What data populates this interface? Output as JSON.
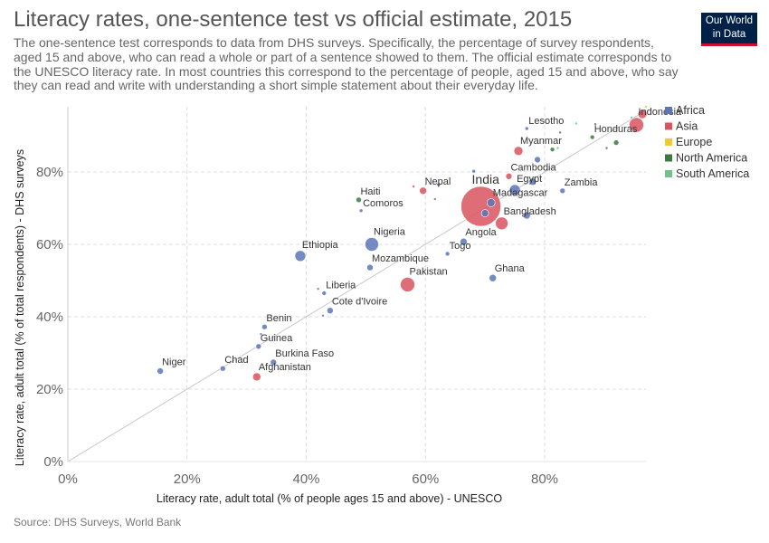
{
  "title": "Literacy rates, one-sentence test vs official estimate, 2015",
  "subtitle": "The one-sentence test corresponds to data from DHS surveys. Specifically, the percentage of survey respondents, aged 15 and above, who can read a whole or part of a sentence showed to them. The official estimate corresponds to the UNESCO literacy rate. In most countries this correspond to the percentage of people, aged 15 and above, who say they can read and write with understanding a short simple statement about their everyday life.",
  "logo": {
    "line1": "Our World",
    "line2": "in Data"
  },
  "source": "Source: DHS Surveys, World Bank",
  "colors": {
    "Africa": "#5b76b9",
    "Asia": "#d8545f",
    "Europe": "#f2c934",
    "North America": "#3d7a3f",
    "South America": "#6fc28b"
  },
  "chart_data": {
    "type": "scatter",
    "xlabel": "Literacy rate, adult total (% of people ages 15 and above) - UNESCO",
    "ylabel": "Literacy rate, adult total (% of total respondents) - DHS surveys",
    "xlim": [
      0,
      97
    ],
    "ylim": [
      0,
      98
    ],
    "xticks": [
      0,
      20,
      40,
      60,
      80
    ],
    "yticks": [
      0,
      20,
      40,
      60,
      80
    ],
    "x_tick_labels": [
      "0%",
      "20%",
      "40%",
      "60%",
      "80%"
    ],
    "y_tick_labels": [
      "0%",
      "20%",
      "40%",
      "60%",
      "80%"
    ],
    "grid": true,
    "legend_position": "right",
    "legend": [
      "Africa",
      "Asia",
      "Europe",
      "North America",
      "South America"
    ],
    "points": [
      {
        "label": "Niger",
        "x": 15.5,
        "y": 25.0,
        "region": "Africa",
        "r": 3.5
      },
      {
        "label": "Chad",
        "x": 26.0,
        "y": 25.7,
        "region": "Africa",
        "r": 3
      },
      {
        "label": "Afghanistan",
        "x": 31.7,
        "y": 23.4,
        "region": "Asia",
        "r": 4.5
      },
      {
        "label": "Burkina Faso",
        "x": 34.5,
        "y": 27.4,
        "region": "Africa",
        "r": 3.5
      },
      {
        "label": "Guinea",
        "x": 32.0,
        "y": 31.8,
        "region": "Africa",
        "r": 3
      },
      {
        "label": "",
        "x": 32.4,
        "y": 35.2,
        "region": "Africa",
        "r": 1.5
      },
      {
        "label": "Benin",
        "x": 33.0,
        "y": 37.2,
        "region": "Africa",
        "r": 3
      },
      {
        "label": "Liberia",
        "x": 43.0,
        "y": 46.5,
        "region": "Africa",
        "r": 2.5
      },
      {
        "label": "",
        "x": 42.0,
        "y": 47.7,
        "region": "Africa",
        "r": 1.5
      },
      {
        "label": "Cote d'Ivoire",
        "x": 44.0,
        "y": 41.7,
        "region": "Africa",
        "r": 3.5
      },
      {
        "label": "",
        "x": 42.8,
        "y": 40.3,
        "region": "Africa",
        "r": 1.5
      },
      {
        "label": "Ethiopia",
        "x": 39.0,
        "y": 56.8,
        "region": "Africa",
        "r": 6
      },
      {
        "label": "Nigeria",
        "x": 51.0,
        "y": 60.0,
        "region": "Africa",
        "r": 7.5
      },
      {
        "label": "Mozambique",
        "x": 50.7,
        "y": 53.6,
        "region": "Africa",
        "r": 3.5
      },
      {
        "label": "Pakistan",
        "x": 57.0,
        "y": 48.9,
        "region": "Asia",
        "r": 8
      },
      {
        "label": "Haiti",
        "x": 48.8,
        "y": 72.3,
        "region": "North America",
        "r": 3
      },
      {
        "label": "Comoros",
        "x": 49.2,
        "y": 69.3,
        "region": "Africa",
        "r": 2
      },
      {
        "label": "Nepal",
        "x": 59.6,
        "y": 74.8,
        "region": "Asia",
        "r": 4
      },
      {
        "label": "",
        "x": 58.0,
        "y": 76.0,
        "region": "Asia",
        "r": 1.5
      },
      {
        "label": "",
        "x": 62.2,
        "y": 76.5,
        "region": "Africa",
        "r": 2
      },
      {
        "label": "",
        "x": 61.6,
        "y": 72.5,
        "region": "Africa",
        "r": 1.5
      },
      {
        "label": "",
        "x": 68.1,
        "y": 80.2,
        "region": "Africa",
        "r": 2
      },
      {
        "label": "Angola",
        "x": 66.4,
        "y": 60.7,
        "region": "Africa",
        "r": 4
      },
      {
        "label": "Togo",
        "x": 63.7,
        "y": 57.4,
        "region": "Africa",
        "r": 2.5
      },
      {
        "label": "Ghana",
        "x": 71.3,
        "y": 50.7,
        "region": "Africa",
        "r": 4
      },
      {
        "label": "India",
        "x": 69.3,
        "y": 70.5,
        "region": "Asia",
        "r": 22
      },
      {
        "label": "Madagascar",
        "x": 71.0,
        "y": 71.5,
        "region": "Africa",
        "r": 4.5
      },
      {
        "label": "",
        "x": 70.0,
        "y": 68.6,
        "region": "Africa",
        "r": 4
      },
      {
        "label": "Bangladesh",
        "x": 72.8,
        "y": 65.8,
        "region": "Asia",
        "r": 7
      },
      {
        "label": "",
        "x": 77.0,
        "y": 68.0,
        "region": "Africa",
        "r": 4
      },
      {
        "label": "Egypt",
        "x": 75.0,
        "y": 75.0,
        "region": "Africa",
        "r": 6
      },
      {
        "label": "Cambodia",
        "x": 74.0,
        "y": 78.8,
        "region": "Asia",
        "r": 3.5
      },
      {
        "label": "",
        "x": 78.0,
        "y": 77.3,
        "region": "Africa",
        "r": 4
      },
      {
        "label": "Zambia",
        "x": 83.0,
        "y": 74.8,
        "region": "Africa",
        "r": 3
      },
      {
        "label": "Myanmar",
        "x": 75.6,
        "y": 85.8,
        "region": "Asia",
        "r": 5
      },
      {
        "label": "",
        "x": 78.8,
        "y": 83.4,
        "region": "Africa",
        "r": 3.5
      },
      {
        "label": "Lesotho",
        "x": 77.0,
        "y": 92.0,
        "region": "Africa",
        "r": 2
      },
      {
        "label": "",
        "x": 81.3,
        "y": 86.2,
        "region": "North America",
        "r": 2.5
      },
      {
        "label": "",
        "x": 82.2,
        "y": 86.6,
        "region": "South America",
        "r": 1.5
      },
      {
        "label": "",
        "x": 82.6,
        "y": 90.9,
        "region": "North America",
        "r": 1.5
      },
      {
        "label": "",
        "x": 85.3,
        "y": 93.4,
        "region": "South America",
        "r": 1.5
      },
      {
        "label": "Honduras",
        "x": 88.0,
        "y": 89.6,
        "region": "North America",
        "r": 2.5
      },
      {
        "label": "",
        "x": 92.0,
        "y": 88.1,
        "region": "North America",
        "r": 3
      },
      {
        "label": "",
        "x": 90.4,
        "y": 86.6,
        "region": "North America",
        "r": 1.5
      },
      {
        "label": "",
        "x": 88.5,
        "y": 93.2,
        "region": "Africa",
        "r": 1.5
      },
      {
        "label": "Indonesia",
        "x": 95.4,
        "y": 93.0,
        "region": "Asia",
        "r": 8
      },
      {
        "label": "",
        "x": 96.4,
        "y": 96.0,
        "region": "Asia",
        "r": 5
      },
      {
        "label": "",
        "x": 97.0,
        "y": 98.0,
        "region": "Europe",
        "r": 1.5
      },
      {
        "label": "",
        "x": 94.6,
        "y": 95.0,
        "region": "South America",
        "r": 1.5
      }
    ]
  }
}
